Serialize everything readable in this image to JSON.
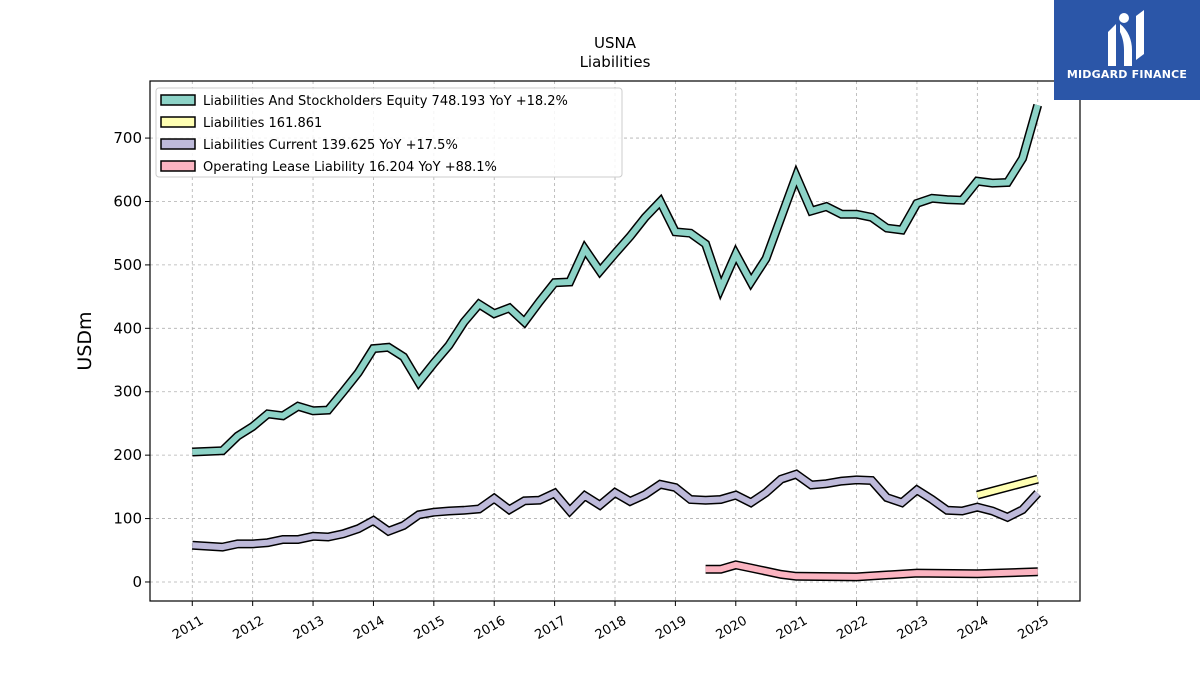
{
  "logo": {
    "text": "MIDGARD FINANCE",
    "color": "#2b56a8"
  },
  "chart_data": {
    "type": "line",
    "title": "USNA",
    "subtitle": "Liabilities",
    "ylabel": "USDm",
    "xlabel": "",
    "ylim": [
      -30,
      790
    ],
    "xlim": [
      2010.3,
      2025.7
    ],
    "yticks": [
      "0",
      "100",
      "200",
      "300",
      "400",
      "500",
      "600",
      "700"
    ],
    "xticks": [
      "2011",
      "2012",
      "2013",
      "2014",
      "2015",
      "2016",
      "2017",
      "2018",
      "2019",
      "2020",
      "2021",
      "2022",
      "2023",
      "2024",
      "2025"
    ],
    "grid": true,
    "legend_position": "top-left",
    "series": [
      {
        "name": "Liabilities And Stockholders Equity",
        "legend": "Liabilities And Stockholders Equity  748.193 YoY +18.2%",
        "color": "#8dd3c7",
        "x": [
          2011.0,
          2011.5,
          2011.75,
          2012.0,
          2012.25,
          2012.5,
          2012.75,
          2013.0,
          2013.25,
          2013.5,
          2013.75,
          2014.0,
          2014.25,
          2014.5,
          2014.75,
          2015.0,
          2015.25,
          2015.5,
          2015.75,
          2016.0,
          2016.25,
          2016.5,
          2016.75,
          2017.0,
          2017.25,
          2017.5,
          2017.75,
          2018.0,
          2018.25,
          2018.5,
          2018.75,
          2019.0,
          2019.25,
          2019.5,
          2019.75,
          2020.0,
          2020.25,
          2020.5,
          2020.75,
          2021.0,
          2021.25,
          2021.5,
          2021.75,
          2022.0,
          2022.25,
          2022.5,
          2022.75,
          2023.0,
          2023.25,
          2023.5,
          2023.75,
          2024.0,
          2024.25,
          2024.5,
          2024.75,
          2025.0
        ],
        "values": [
          205,
          207,
          230,
          245,
          265,
          262,
          277,
          270,
          271,
          300,
          330,
          368,
          370,
          355,
          315,
          345,
          373,
          410,
          438,
          423,
          432,
          410,
          442,
          472,
          473,
          525,
          490,
          518,
          545,
          575,
          600,
          552,
          550,
          533,
          463,
          517,
          473,
          510,
          575,
          640,
          585,
          592,
          580,
          580,
          575,
          558,
          555,
          597,
          605,
          603,
          602,
          632,
          629,
          630,
          668,
          752
        ]
      },
      {
        "name": "Liabilities",
        "legend": "Liabilities  161.861",
        "color": "#ffffb3",
        "x": [
          2024.0,
          2025.0
        ],
        "values": [
          137,
          162
        ]
      },
      {
        "name": "Liabilities Current",
        "legend": "Liabilities Current  139.625 YoY +17.5%",
        "color": "#bebada",
        "x": [
          2011.0,
          2011.5,
          2011.75,
          2012.0,
          2012.25,
          2012.5,
          2012.75,
          2013.0,
          2013.25,
          2013.5,
          2013.75,
          2014.0,
          2014.25,
          2014.5,
          2014.75,
          2015.0,
          2015.25,
          2015.5,
          2015.75,
          2016.0,
          2016.25,
          2016.5,
          2016.75,
          2017.0,
          2017.25,
          2017.5,
          2017.75,
          2018.0,
          2018.25,
          2018.5,
          2018.75,
          2019.0,
          2019.25,
          2019.5,
          2019.75,
          2020.0,
          2020.25,
          2020.5,
          2020.75,
          2021.0,
          2021.25,
          2021.5,
          2021.75,
          2022.0,
          2022.25,
          2022.5,
          2022.75,
          2023.0,
          2023.25,
          2023.5,
          2023.75,
          2024.0,
          2024.25,
          2024.5,
          2024.75,
          2025.0
        ],
        "values": [
          58,
          55,
          60,
          60,
          62,
          67,
          67,
          72,
          71,
          76,
          84,
          97,
          80,
          89,
          106,
          110,
          112,
          113,
          115,
          132,
          114,
          128,
          129,
          140,
          112,
          136,
          121,
          141,
          127,
          138,
          154,
          149,
          130,
          129,
          130,
          137,
          125,
          141,
          162,
          170,
          153,
          155,
          159,
          161,
          160,
          133,
          125,
          145,
          130,
          113,
          112,
          118,
          112,
          102,
          114,
          140
        ]
      },
      {
        "name": "Operating Lease Liability",
        "legend": "Operating Lease Liability  16.204 YoY +88.1%",
        "color": "#fbb4c1",
        "x": [
          2019.5,
          2019.75,
          2020.0,
          2020.25,
          2020.5,
          2020.75,
          2021.0,
          2022.0,
          2023.0,
          2024.0,
          2025.0
        ],
        "values": [
          20,
          20,
          27,
          22,
          17,
          12,
          9,
          8,
          14,
          13,
          16
        ]
      }
    ]
  }
}
